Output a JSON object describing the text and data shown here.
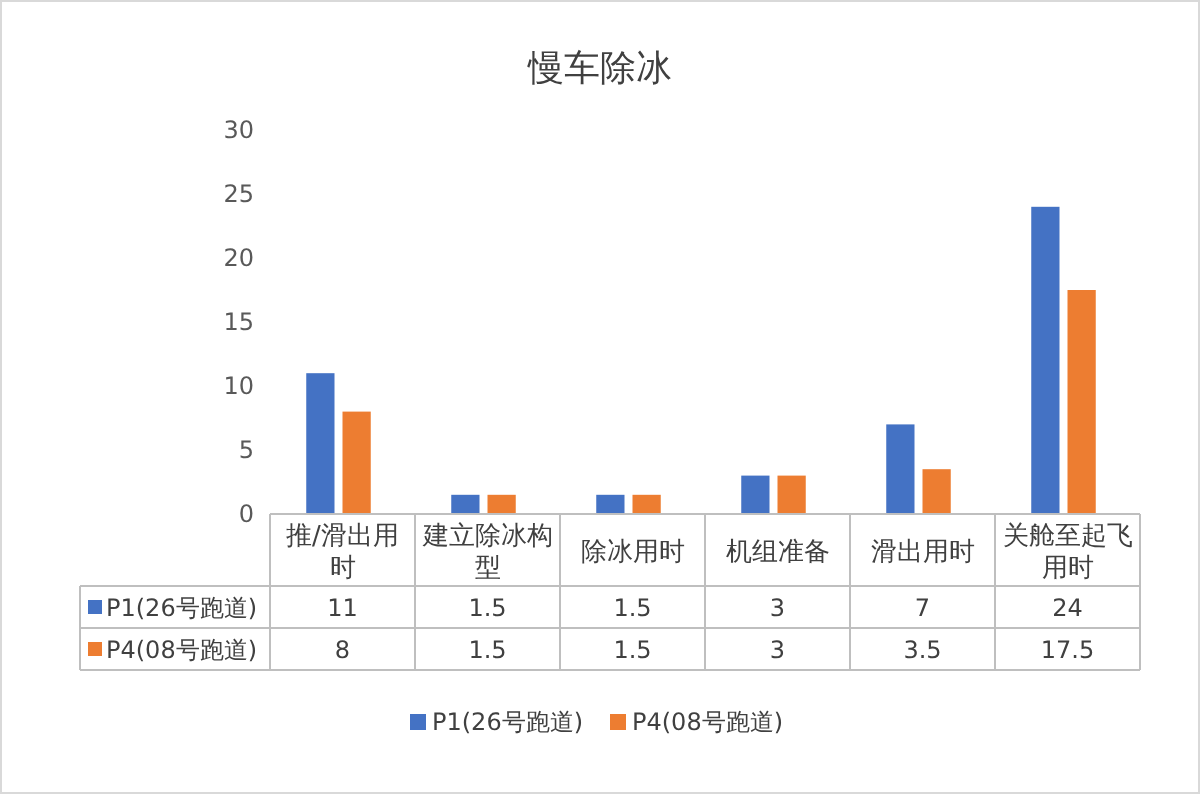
{
  "chart_data": {
    "type": "bar",
    "title": "慢车除冰",
    "categories": [
      "推/滑出用时",
      "建立除冰构型",
      "除冰用时",
      "机组准备",
      "滑出用时",
      "关舱至起飞用时"
    ],
    "series": [
      {
        "name": "P1(26号跑道)",
        "color": "#4472c4",
        "values": [
          11,
          1.5,
          1.5,
          3,
          7,
          24
        ]
      },
      {
        "name": "P4(08号跑道)",
        "color": "#ed7d31",
        "values": [
          8,
          1.5,
          1.5,
          3,
          3.5,
          17.5
        ]
      }
    ],
    "ylim": [
      0,
      30
    ],
    "yticks": [
      0,
      5,
      10,
      15,
      20,
      25,
      30
    ],
    "grid": false,
    "legend": "bottom",
    "data_labels": true
  }
}
